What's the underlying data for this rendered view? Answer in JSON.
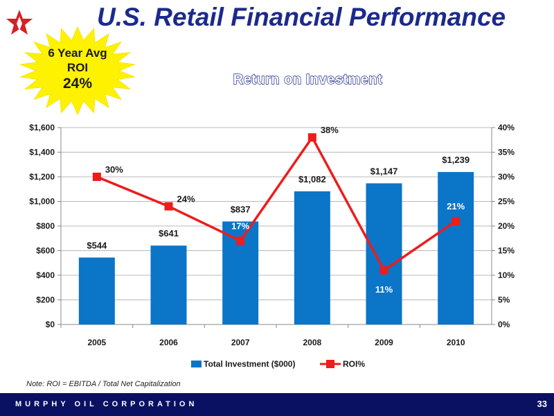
{
  "slide": {
    "title": "U.S. Retail Financial Performance",
    "callout": {
      "line1": "6 Year Avg",
      "line2": "ROI",
      "line3": "24%"
    },
    "subtitle": "Return on Investment",
    "note": "Note: ROI = EBITDA / Total Net Capitalization",
    "footer": {
      "company": "MURPHY OIL CORPORATION",
      "page": "33"
    }
  },
  "colors": {
    "title": "#1c2a8c",
    "bar": "#0b75c8",
    "line": "#ee1c1c",
    "burst": "#fff200",
    "footer": "#0a1062"
  },
  "icons": {
    "logo": "red-star-logo-icon",
    "burst": "starburst-icon"
  },
  "chart_data": {
    "type": "bar+line",
    "categories": [
      "2005",
      "2006",
      "2007",
      "2008",
      "2009",
      "2010"
    ],
    "series": [
      {
        "name": "Total Investment ($000)",
        "type": "bar",
        "axis": "left",
        "values": [
          544,
          641,
          837,
          1082,
          1147,
          1239
        ],
        "labels": [
          "$544",
          "$641",
          "$837",
          "$1,082",
          "$1,147",
          "$1,239"
        ]
      },
      {
        "name": "ROI%",
        "type": "line",
        "axis": "right",
        "values": [
          30,
          24,
          17,
          38,
          11,
          21
        ],
        "labels": [
          "30%",
          "24%",
          "17%",
          "38%",
          "11%",
          "21%"
        ]
      }
    ],
    "y_left": {
      "range": [
        0,
        1600
      ],
      "ticks": [
        "$0",
        "$200",
        "$400",
        "$600",
        "$800",
        "$1,000",
        "$1,200",
        "$1,400",
        "$1,600"
      ]
    },
    "y_right": {
      "range": [
        0,
        40
      ],
      "ticks": [
        "0%",
        "5%",
        "10%",
        "15%",
        "20%",
        "25%",
        "30%",
        "35%",
        "40%"
      ]
    },
    "grid": true,
    "legend_position": "bottom"
  }
}
